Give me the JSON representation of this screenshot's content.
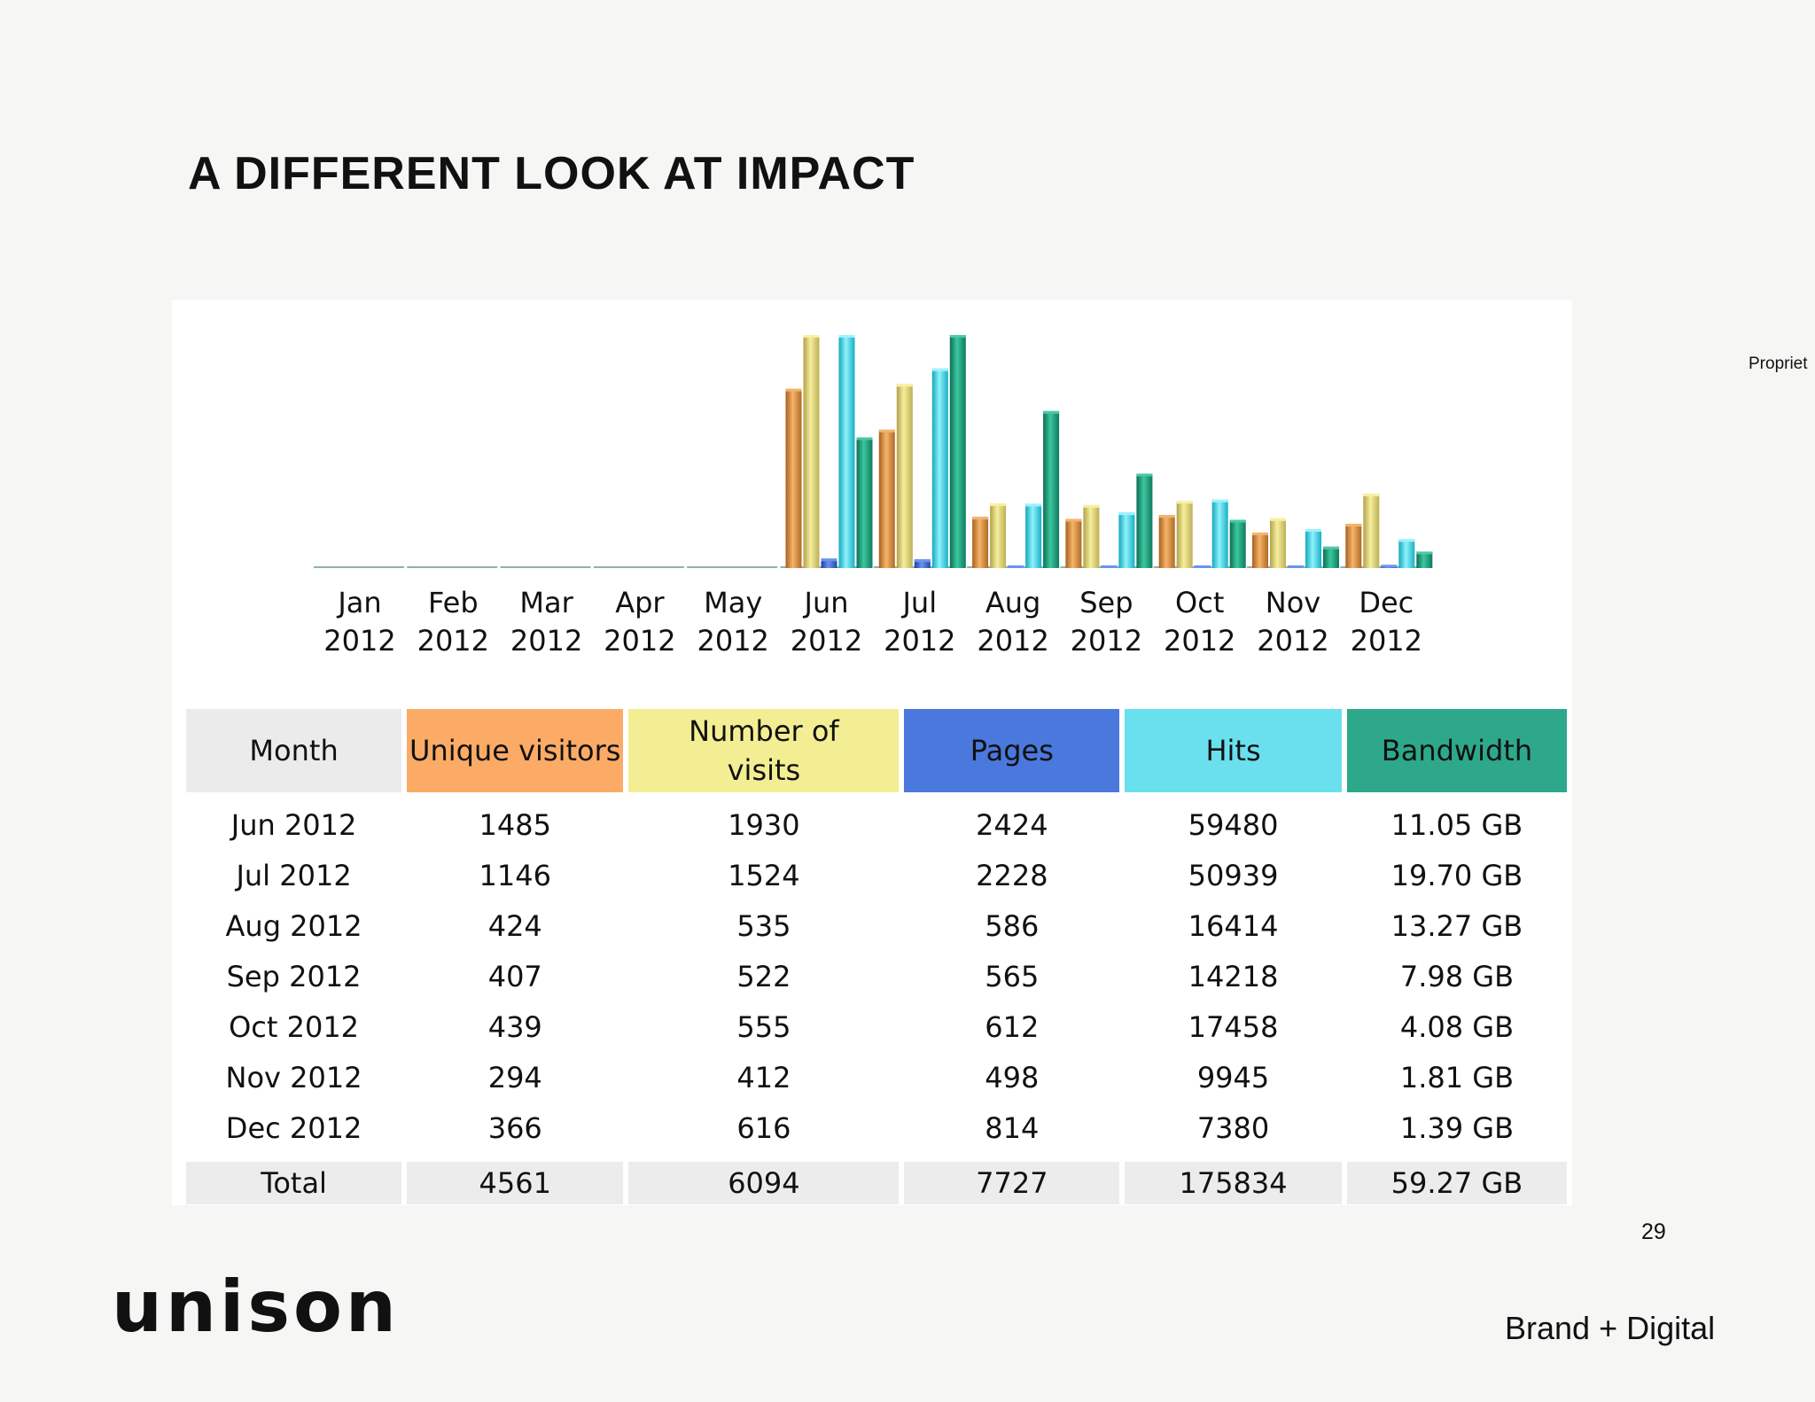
{
  "slide": {
    "title": "A DIFFERENT LOOK AT IMPACT",
    "side_note": "Propriet",
    "page_number": "29",
    "logo_text": "unison",
    "tagline": "Brand + Digital"
  },
  "colors": {
    "unique_visitors": "#fbab66",
    "visits": "#f3ee93",
    "pages": "#4a78dc",
    "hits": "#6adfee",
    "bandwidth": "#2da88b",
    "month_header": "#ebebeb",
    "total_row": "#ececec"
  },
  "chart_data": {
    "type": "bar",
    "title": "",
    "categories": [
      [
        "Jan",
        "2012"
      ],
      [
        "Feb",
        "2012"
      ],
      [
        "Mar",
        "2012"
      ],
      [
        "Apr",
        "2012"
      ],
      [
        "May",
        "2012"
      ],
      [
        "Jun",
        "2012"
      ],
      [
        "Jul",
        "2012"
      ],
      [
        "Aug",
        "2012"
      ],
      [
        "Sep",
        "2012"
      ],
      [
        "Oct",
        "2012"
      ],
      [
        "Nov",
        "2012"
      ],
      [
        "Dec",
        "2012"
      ]
    ],
    "series": [
      {
        "name": "Unique visitors",
        "scale_max": 1930,
        "values": [
          0,
          0,
          0,
          0,
          0,
          1485,
          1146,
          424,
          407,
          439,
          294,
          366
        ]
      },
      {
        "name": "Number of visits",
        "scale_max": 1930,
        "values": [
          0,
          0,
          0,
          0,
          0,
          1930,
          1524,
          535,
          522,
          555,
          412,
          616
        ]
      },
      {
        "name": "Pages",
        "scale_max": 59480,
        "values": [
          0,
          0,
          0,
          0,
          0,
          2424,
          2228,
          586,
          565,
          612,
          498,
          814
        ]
      },
      {
        "name": "Hits",
        "scale_max": 59480,
        "values": [
          0,
          0,
          0,
          0,
          0,
          59480,
          50939,
          16414,
          14218,
          17458,
          9945,
          7380
        ]
      },
      {
        "name": "Bandwidth",
        "unit": "GB",
        "scale_max": 19.7,
        "values": [
          0,
          0,
          0,
          0,
          0,
          11.05,
          19.7,
          13.27,
          7.98,
          4.08,
          1.81,
          1.39
        ]
      }
    ],
    "xlabel": "",
    "ylabel": ""
  },
  "table": {
    "headers": [
      "Month",
      "Unique visitors",
      "Number of visits",
      "Pages",
      "Hits",
      "Bandwidth"
    ],
    "rows": [
      [
        "Jun 2012",
        "1485",
        "1930",
        "2424",
        "59480",
        "11.05 GB"
      ],
      [
        "Jul 2012",
        "1146",
        "1524",
        "2228",
        "50939",
        "19.70 GB"
      ],
      [
        "Aug 2012",
        "424",
        "535",
        "586",
        "16414",
        "13.27 GB"
      ],
      [
        "Sep 2012",
        "407",
        "522",
        "565",
        "14218",
        "7.98 GB"
      ],
      [
        "Oct 2012",
        "439",
        "555",
        "612",
        "17458",
        "4.08 GB"
      ],
      [
        "Nov 2012",
        "294",
        "412",
        "498",
        "9945",
        "1.81 GB"
      ],
      [
        "Dec 2012",
        "366",
        "616",
        "814",
        "7380",
        "1.39 GB"
      ]
    ],
    "total": [
      "Total",
      "4561",
      "6094",
      "7727",
      "175834",
      "59.27 GB"
    ]
  }
}
